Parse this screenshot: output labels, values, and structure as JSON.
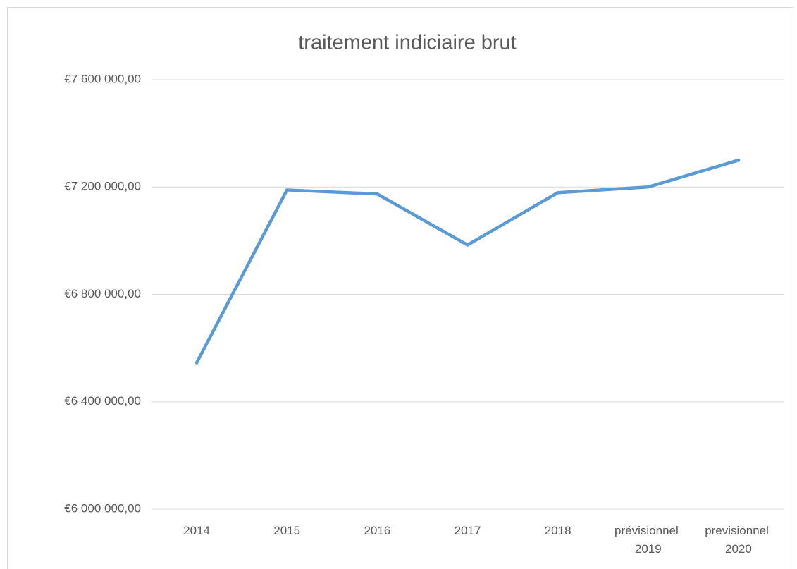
{
  "chart_data": {
    "type": "line",
    "title": "traitement indiciaire brut",
    "categories": [
      "2014",
      "2015",
      "2016",
      "2017",
      "2018",
      "prévisionnel 2019",
      "previsionnel 2020"
    ],
    "series": [
      {
        "name": "traitement indiciaire brut",
        "color": "#5b9bd5",
        "values": [
          6545000,
          7189000,
          7174000,
          6984000,
          7179000,
          7200000,
          7300000
        ]
      }
    ],
    "ylim": [
      6000000,
      7600000
    ],
    "yticks": [
      {
        "value": 6000000,
        "label": "€6 000 000,00"
      },
      {
        "value": 6400000,
        "label": "€6 400 000,00"
      },
      {
        "value": 6800000,
        "label": "€6 800 000,00"
      },
      {
        "value": 7200000,
        "label": "€7 200 000,00"
      },
      {
        "value": 7600000,
        "label": "€7 600 000,00"
      }
    ],
    "grid": true
  }
}
